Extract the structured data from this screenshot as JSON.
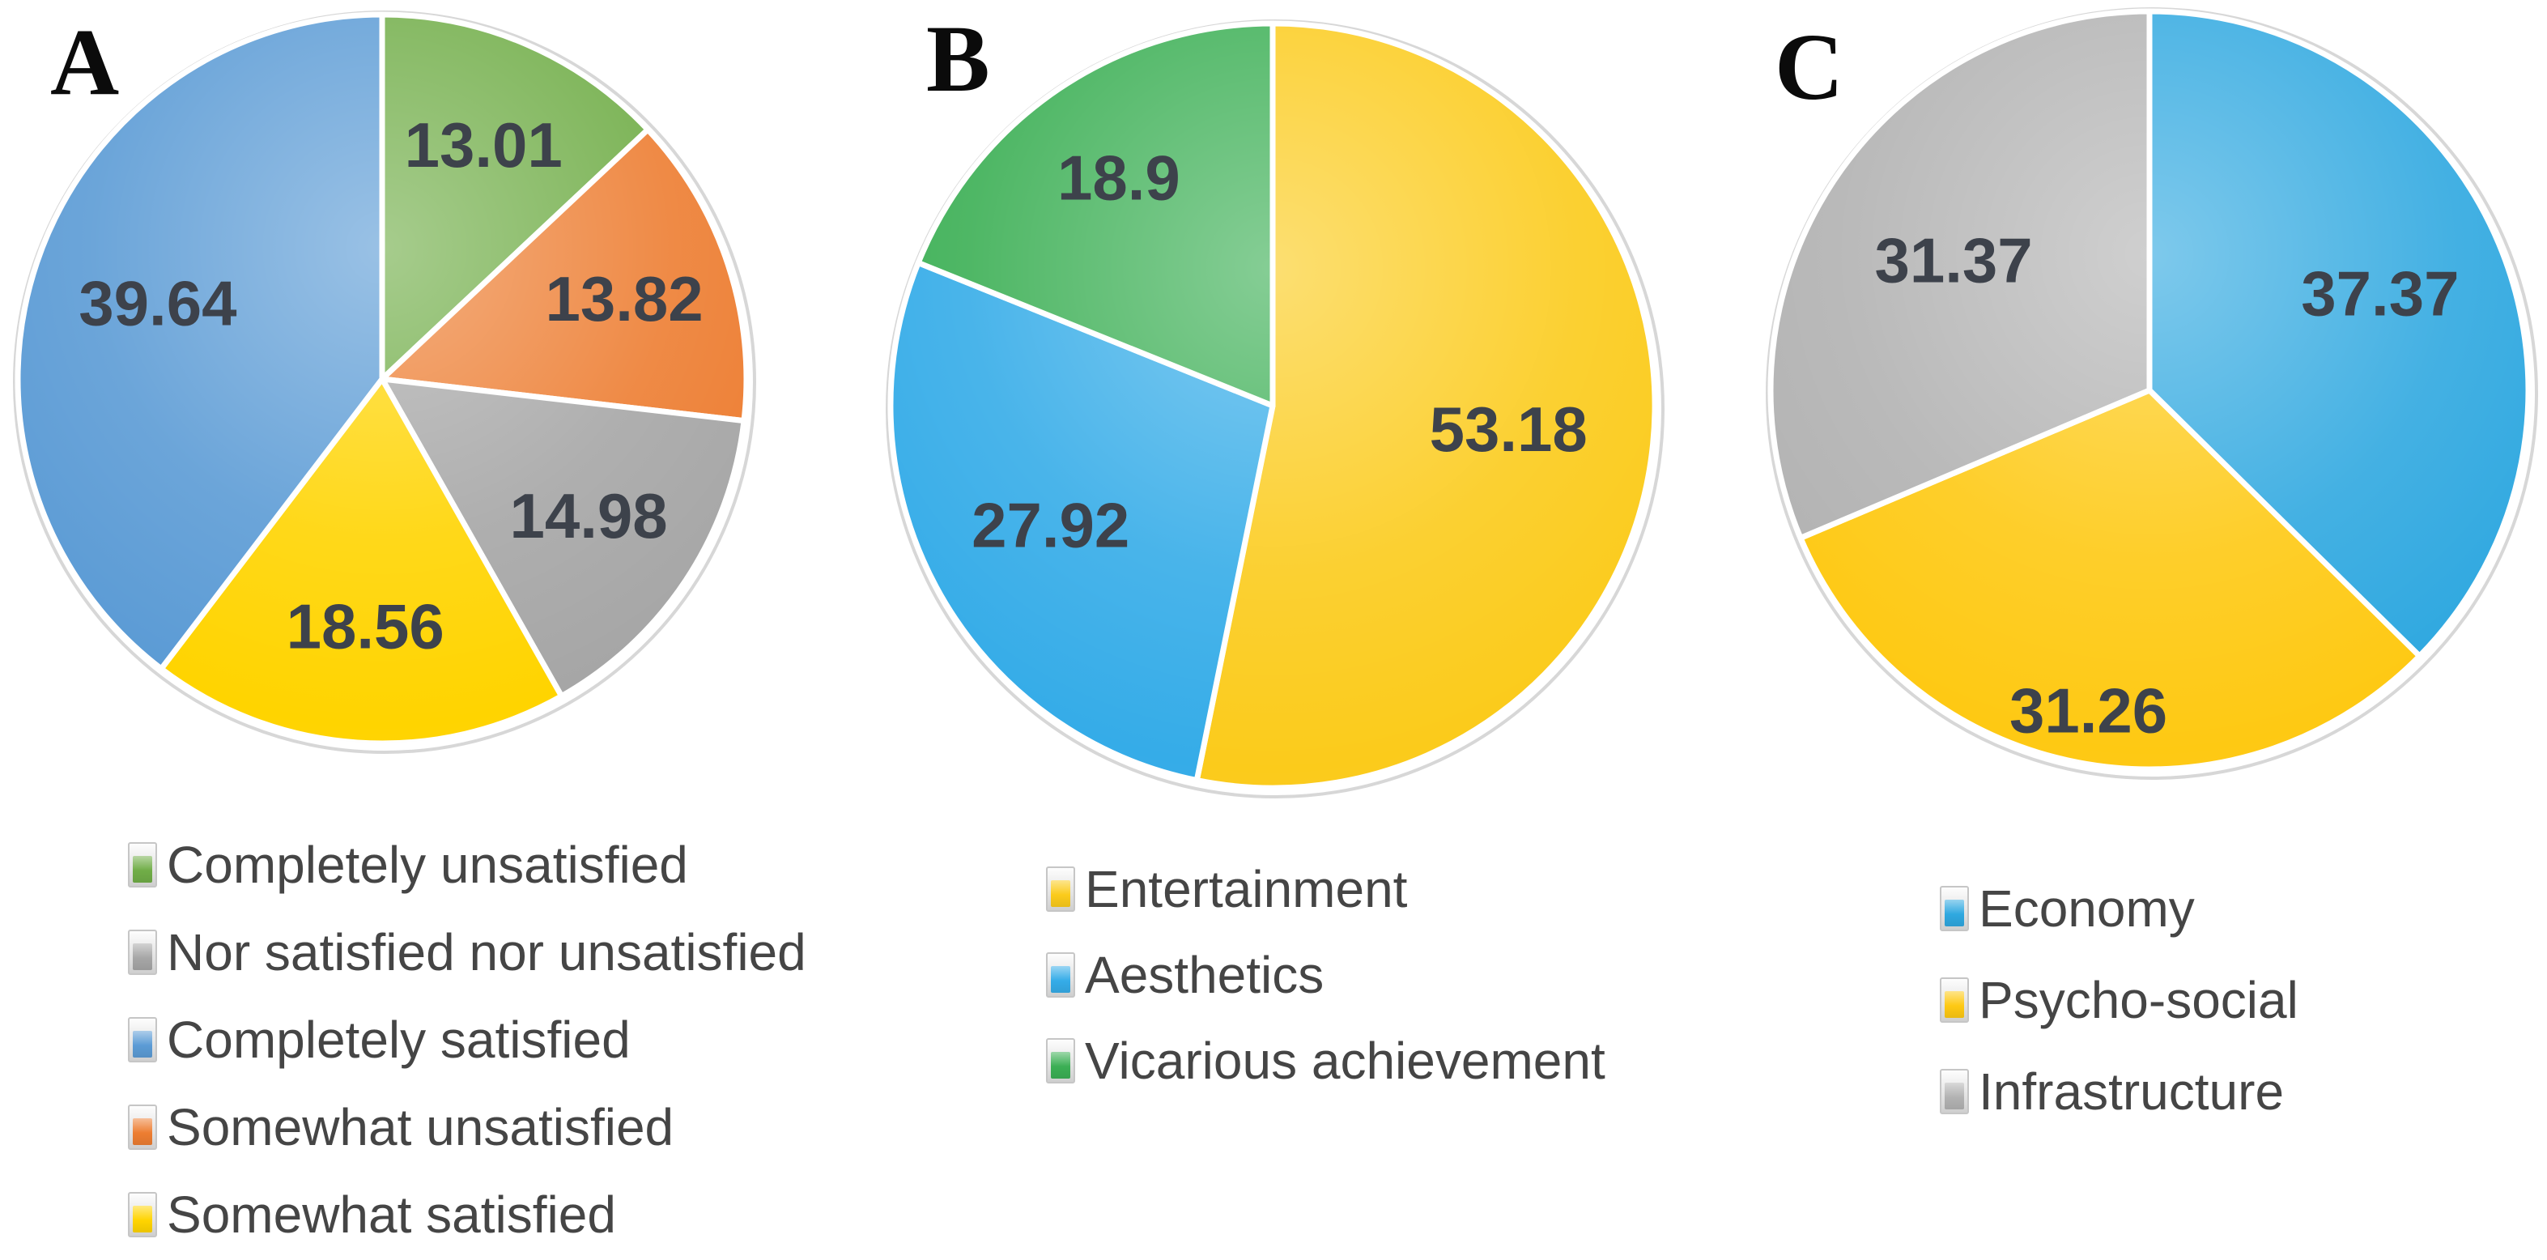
{
  "figure": {
    "background": "#ffffff",
    "value_label_color": "#3d424b",
    "legend_text_color": "#454545",
    "panel_letter_color": "#0b0b0b"
  },
  "chart_data": [
    {
      "type": "pie",
      "panel_label": "A",
      "start_angle_deg": 0,
      "direction": "clockwise",
      "legend_position": "bottom",
      "slices": [
        {
          "label": "Completely unsatisfied",
          "value": 13.01,
          "display": "13.01",
          "color": "#70AD47"
        },
        {
          "label": "Somewhat unsatisfied",
          "value": 13.82,
          "display": "13.82",
          "color": "#ED7D31"
        },
        {
          "label": "Nor satisfied nor unsatisfied",
          "value": 14.98,
          "display": "14.98",
          "color": "#A6A6A6"
        },
        {
          "label": "Somewhat satisfied",
          "value": 18.56,
          "display": "18.56",
          "color": "#FFD400"
        },
        {
          "label": "Completely satisfied",
          "value": 39.64,
          "display": "39.64",
          "color": "#5B9BD5"
        }
      ],
      "legend": [
        {
          "label": "Completely unsatisfied",
          "color": "#70AD47"
        },
        {
          "label": "Nor satisfied nor unsatisfied",
          "color": "#A6A6A6"
        },
        {
          "label": "Completely satisfied",
          "color": "#5B9BD5"
        },
        {
          "label": "Somewhat unsatisfied",
          "color": "#ED7D31"
        },
        {
          "label": "Somewhat satisfied",
          "color": "#FFD400"
        }
      ]
    },
    {
      "type": "pie",
      "panel_label": "B",
      "start_angle_deg": 0,
      "direction": "clockwise",
      "legend_position": "bottom",
      "slices": [
        {
          "label": "Entertainment",
          "value": 53.18,
          "display": "53.18",
          "color": "#FBCB1B"
        },
        {
          "label": "Aesthetics",
          "value": 27.92,
          "display": "27.92",
          "color": "#35ACE8"
        },
        {
          "label": "Vicarious achievement",
          "value": 18.9,
          "display": "18.9",
          "color": "#3BAF54"
        }
      ],
      "legend": [
        {
          "label": "Entertainment",
          "color": "#FBCB1B"
        },
        {
          "label": "Aesthetics",
          "color": "#35ACE8"
        },
        {
          "label": "Vicarious achievement",
          "color": "#3BAF54"
        }
      ]
    },
    {
      "type": "pie",
      "panel_label": "C",
      "start_angle_deg": 0,
      "direction": "clockwise",
      "legend_position": "bottom",
      "slices": [
        {
          "label": "Economy",
          "value": 37.37,
          "display": "37.37",
          "color": "#2FA8E0"
        },
        {
          "label": "Psycho-social",
          "value": 31.26,
          "display": "31.26",
          "color": "#FEC913"
        },
        {
          "label": "Infrastructure",
          "value": 31.37,
          "display": "31.37",
          "color": "#B2B2B2"
        }
      ],
      "legend": [
        {
          "label": "Economy",
          "color": "#2FA8E0"
        },
        {
          "label": "Psycho-social",
          "color": "#FEC913"
        },
        {
          "label": "Infrastructure",
          "color": "#B2B2B2"
        }
      ]
    }
  ]
}
